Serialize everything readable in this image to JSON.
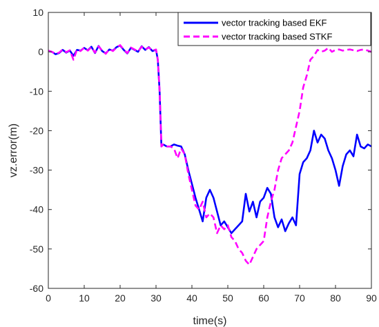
{
  "chart_data": {
    "type": "line",
    "title": "",
    "xlabel": "time(s)",
    "ylabel": "vz.error(m)",
    "xlim": [
      0,
      90
    ],
    "ylim": [
      -60,
      10
    ],
    "x_ticks": [
      0,
      10,
      20,
      30,
      40,
      50,
      60,
      70,
      80,
      90
    ],
    "y_ticks": [
      10,
      0,
      -10,
      -20,
      -30,
      -40,
      -50,
      -60
    ],
    "grid": false,
    "legend_position": "top-right",
    "series": [
      {
        "name": "vector tracking based EKF",
        "color": "#0000ff",
        "style": "solid",
        "x": [
          0,
          1,
          2,
          3,
          4,
          5,
          6,
          7,
          8,
          9,
          10,
          11,
          12,
          13,
          14,
          15,
          16,
          17,
          18,
          19,
          20,
          21,
          22,
          23,
          24,
          25,
          26,
          27,
          28,
          29,
          30,
          30.5,
          31,
          31.5,
          32,
          33,
          34,
          35,
          36,
          37,
          38,
          39,
          40,
          41,
          42,
          43,
          44,
          45,
          46,
          47,
          48,
          49,
          50,
          51,
          52,
          53,
          54,
          55,
          56,
          57,
          58,
          59,
          60,
          61,
          62,
          63,
          64,
          65,
          66,
          67,
          68,
          69,
          70,
          71,
          72,
          73,
          74,
          75,
          76,
          77,
          78,
          79,
          80,
          81,
          82,
          83,
          84,
          85,
          86,
          87,
          88,
          89,
          90
        ],
        "values": [
          0.2,
          0.0,
          -0.6,
          -0.3,
          0.5,
          -0.2,
          0.3,
          -1.0,
          0.5,
          0.3,
          1.0,
          0.4,
          1.3,
          -0.3,
          1.5,
          0.2,
          -0.4,
          0.6,
          0.3,
          1.2,
          1.6,
          0.5,
          -0.4,
          1.0,
          0.5,
          0.0,
          1.4,
          0.5,
          1.2,
          0.2,
          0.5,
          -2.0,
          -10.0,
          -24.0,
          -23.5,
          -24.0,
          -24.0,
          -23.5,
          -23.8,
          -24.0,
          -26.0,
          -30.0,
          -33.5,
          -37.0,
          -40.0,
          -43.0,
          -37.0,
          -35.0,
          -37.0,
          -40.5,
          -44.0,
          -43.0,
          -44.5,
          -46.0,
          -45.0,
          -44.0,
          -43.0,
          -36.0,
          -40.5,
          -38.0,
          -42.0,
          -38.0,
          -37.0,
          -34.5,
          -36.0,
          -42.0,
          -44.5,
          -42.5,
          -45.5,
          -43.5,
          -42.0,
          -44.0,
          -31.0,
          -28.0,
          -27.0,
          -25.0,
          -20.0,
          -23.0,
          -21.0,
          -22.0,
          -25.0,
          -27.0,
          -30.0,
          -34.0,
          -29.0,
          -26.0,
          -25.0,
          -26.5,
          -21.0,
          -24.0,
          -24.5,
          -23.5,
          -24.0
        ]
      },
      {
        "name": "vector tracking based STKF",
        "color": "#ff00ff",
        "style": "dashed",
        "x": [
          0,
          1,
          2,
          3,
          4,
          5,
          6,
          7,
          8,
          9,
          10,
          11,
          12,
          13,
          14,
          15,
          16,
          17,
          18,
          19,
          20,
          21,
          22,
          23,
          24,
          25,
          26,
          27,
          28,
          29,
          30,
          30.5,
          31,
          31.5,
          32,
          33,
          34,
          35,
          36,
          37,
          38,
          39,
          40,
          41,
          42,
          43,
          44,
          45,
          46,
          47,
          48,
          49,
          50,
          51,
          52,
          53,
          54,
          55,
          56,
          57,
          58,
          59,
          60,
          61,
          62,
          63,
          64,
          65,
          66,
          67,
          68,
          69,
          70,
          71,
          72,
          73,
          74,
          75,
          76,
          77,
          78,
          79,
          80,
          81,
          82,
          83,
          84,
          85,
          86,
          87,
          88,
          89,
          90
        ],
        "values": [
          0.3,
          0.0,
          -0.5,
          -0.2,
          0.6,
          -0.1,
          0.4,
          -2.0,
          0.6,
          0.2,
          1.1,
          0.3,
          1.2,
          -0.2,
          1.4,
          0.3,
          -0.5,
          0.7,
          0.2,
          1.1,
          1.7,
          0.6,
          -0.3,
          1.1,
          0.6,
          0.1,
          1.3,
          0.6,
          1.1,
          0.3,
          0.6,
          -2.0,
          -10.0,
          -24.0,
          -23.5,
          -24.0,
          -24.0,
          -24.5,
          -27.0,
          -24.5,
          -26.0,
          -31.0,
          -35.0,
          -39.0,
          -40.0,
          -38.0,
          -42.0,
          -41.0,
          -42.0,
          -46.0,
          -44.0,
          -45.0,
          -44.0,
          -47.0,
          -48.0,
          -50.0,
          -51.0,
          -53.0,
          -54.0,
          -52.0,
          -50.0,
          -49.0,
          -48.0,
          -42.0,
          -38.0,
          -35.0,
          -30.0,
          -27.0,
          -26.0,
          -25.0,
          -23.0,
          -19.0,
          -15.0,
          -9.0,
          -6.0,
          -2.0,
          -1.0,
          0.5,
          0.0,
          0.3,
          1.0,
          0.0,
          0.5,
          0.6,
          0.3,
          0.5,
          0.6,
          0.4,
          0.2,
          0.5,
          0.6,
          0.3,
          0.0
        ]
      }
    ]
  }
}
